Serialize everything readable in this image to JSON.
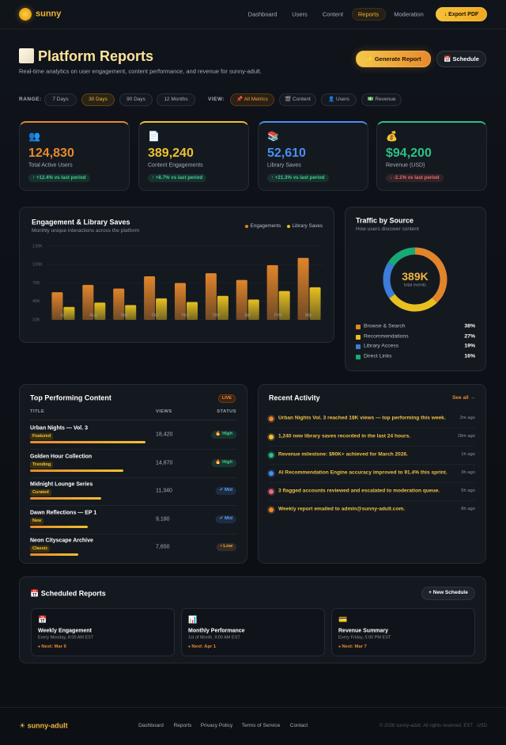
{
  "nav": {
    "brand": "sunny",
    "links": [
      "Dashboard",
      "Users",
      "Content",
      "Reports",
      "Moderation"
    ],
    "active": 3,
    "export": "↓ Export PDF"
  },
  "header": {
    "title": "Platform Reports",
    "subtitle": "Real-time analytics on user engagement, content performance, and revenue for sunny-adult.",
    "generate": "✨ Generate Report",
    "schedule": "📅 Schedule"
  },
  "filters": {
    "range_label": "RANGE:",
    "ranges": [
      "7 Days",
      "30 Days",
      "90 Days",
      "12 Months"
    ],
    "range_active": 1,
    "view_label": "VIEW:",
    "views": [
      "📌 All Metrics",
      "🎬 Content",
      "👤 Users",
      "💵 Revenue"
    ],
    "view_active": 0
  },
  "stats": [
    {
      "icon": "👥",
      "value": "124,830",
      "label": "Total Active Users",
      "change": "↑ +12.4% vs last period",
      "color": "#e8892e",
      "change_color": "#3ecf8e"
    },
    {
      "icon": "📄",
      "value": "389,240",
      "label": "Content Engagements",
      "change": "↑ +8.7% vs last period",
      "color": "#f0c030",
      "change_color": "#3ecf8e"
    },
    {
      "icon": "📚",
      "value": "52,610",
      "label": "Library Saves",
      "change": "↑ +21.3% vs last period",
      "color": "#4a8ff0",
      "change_color": "#3ecf8e"
    },
    {
      "icon": "💰",
      "value": "$94,200",
      "label": "Revenue (USD)",
      "change": "↓ -2.1% vs last period",
      "color": "#2bc08a",
      "change_color": "#f06a6a"
    }
  ],
  "engagement_chart": {
    "type": "bar",
    "title": "Engagement & Library Saves",
    "subtitle": "Monthly unique interactions across the platform",
    "categories": [
      "Jul",
      "Aug",
      "Sep",
      "Oct",
      "Nov",
      "Dec",
      "Jan",
      "Feb",
      "Mar"
    ],
    "series": [
      {
        "name": "Engagements",
        "color": "#e0852b",
        "values": [
          55000,
          67000,
          61000,
          81000,
          70000,
          86000,
          75000,
          99000,
          111000
        ]
      },
      {
        "name": "Library Saves",
        "color": "#e8c020",
        "values": [
          31000,
          38000,
          34000,
          45000,
          39000,
          49000,
          43000,
          57000,
          63000
        ]
      }
    ],
    "ylim": [
      10000,
      130000
    ],
    "yticks": [
      {
        "value": 10000,
        "label": "10K"
      },
      {
        "value": 40000,
        "label": "40K"
      },
      {
        "value": 70000,
        "label": "70K"
      },
      {
        "value": 100000,
        "label": "100K"
      },
      {
        "value": 130000,
        "label": "130K"
      }
    ],
    "grid": true,
    "legend": "top-right"
  },
  "traffic": {
    "type": "pie",
    "title": "Traffic by Source",
    "subtitle": "How users discover content",
    "center_value": "389K",
    "center_label": "total events",
    "categories": [
      "Browse & Search",
      "Recommendations",
      "Library Access",
      "Direct Links"
    ],
    "values": [
      38,
      27,
      19,
      16
    ],
    "value_labels": [
      "38%",
      "27%",
      "19%",
      "16%"
    ],
    "colors": [
      "#e0852b",
      "#e8c020",
      "#3b7dd8",
      "#19a974"
    ]
  },
  "top_content": {
    "title": "Top Performing Content",
    "badge": "LIVE",
    "columns": [
      "TITLE",
      "VIEWS",
      "STATUS"
    ],
    "rows": [
      {
        "title": "Urban Nights — Vol. 3",
        "tag": "Featured",
        "views": 18420,
        "views_label": "18,420",
        "status": "🔥 High",
        "status_color": "#3ecf8e"
      },
      {
        "title": "Golden Hour Collection",
        "tag": "Trending",
        "views": 14870,
        "views_label": "14,870",
        "status": "🔥 High",
        "status_color": "#3ecf8e"
      },
      {
        "title": "Midnight Lounge Series",
        "tag": "Curated",
        "views": 11340,
        "views_label": "11,340",
        "status": "✔ Mid",
        "status_color": "#5b9cf5"
      },
      {
        "title": "Dawn Reflections — EP 1",
        "tag": "New",
        "views": 9180,
        "views_label": "9,180",
        "status": "✔ Mid",
        "status_color": "#5b9cf5"
      },
      {
        "title": "Neon Cityscape Archive",
        "tag": "Classic",
        "views": 7650,
        "views_label": "7,650",
        "status": "• Low",
        "status_color": "#f0a040"
      }
    ]
  },
  "activity": {
    "title": "Recent Activity",
    "link": "See all →",
    "items": [
      {
        "text": "Urban Nights Vol. 3 reached 18K views — top performing this week.",
        "time": "2m ago",
        "color": "#e8892e"
      },
      {
        "text": "1,240 new library saves recorded in the last 24 hours.",
        "time": "18m ago",
        "color": "#f0c030"
      },
      {
        "text": "Revenue milestone: $90K+ achieved for March 2026.",
        "time": "1h ago",
        "color": "#2bc08a"
      },
      {
        "text": "AI Recommendation Engine accuracy improved to 91.4% this sprint.",
        "time": "3h ago",
        "color": "#4a8ff0"
      },
      {
        "text": "3 flagged accounts reviewed and escalated to moderation queue.",
        "time": "5h ago",
        "color": "#f06a7a"
      },
      {
        "text": "Weekly report emailed to admin@sunny-adult.com.",
        "time": "8h ago",
        "color": "#e8892e"
      }
    ]
  },
  "scheduled": {
    "title": "📅 Scheduled Reports",
    "button": "+ New Schedule",
    "items": [
      {
        "icon": "📅",
        "title": "Weekly Engagement",
        "schedule": "Every Monday, 8:00 AM EST",
        "next": "Next: Mar 9"
      },
      {
        "icon": "📊",
        "title": "Monthly Performance",
        "schedule": "1st of Month, 9:00 AM EST",
        "next": "Next: Apr 1"
      },
      {
        "icon": "💳",
        "title": "Revenue Summary",
        "schedule": "Every Friday, 5:00 PM EST",
        "next": "Next: Mar 7"
      }
    ]
  },
  "footer": {
    "brand": "☀ sunny-adult",
    "links": [
      "Dashboard",
      "Reports",
      "Privacy Policy",
      "Terms of Service",
      "Contact"
    ],
    "copyright": "© 2026 sunny-adult. All rights reserved. EST · USD"
  }
}
